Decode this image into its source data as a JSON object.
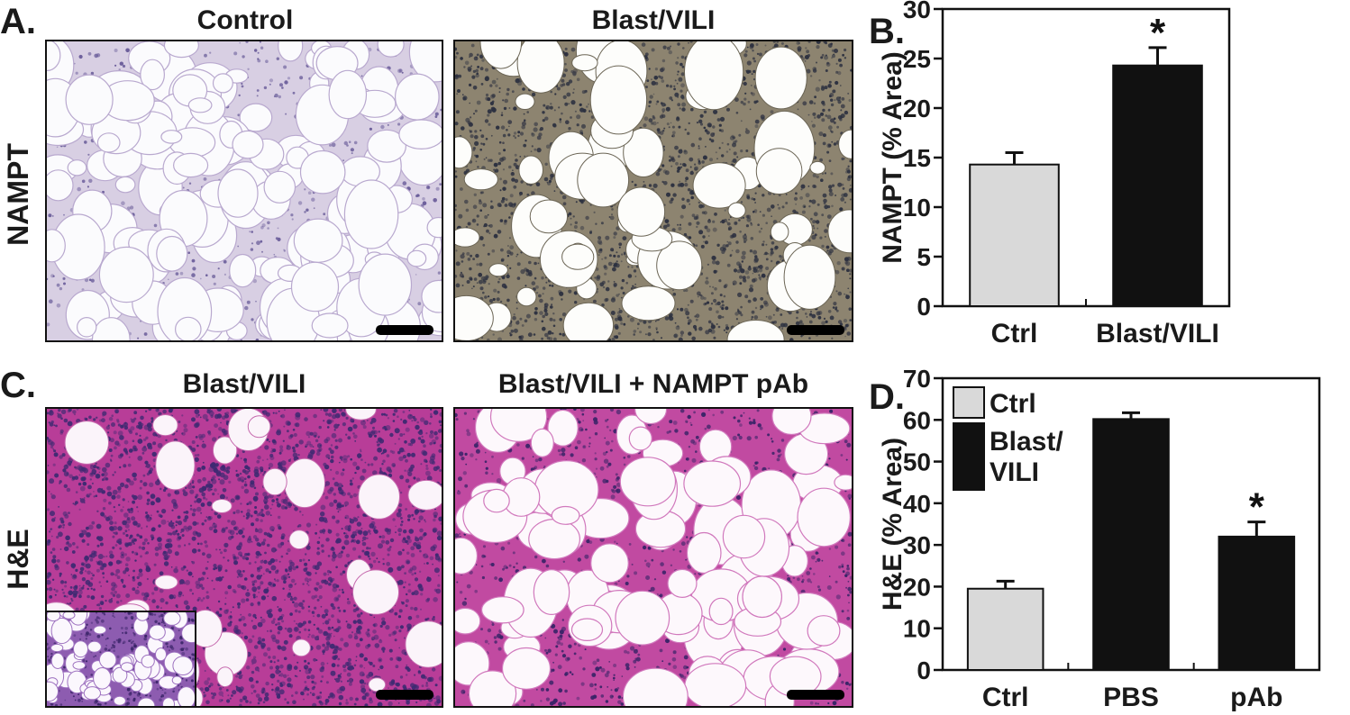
{
  "figure": {
    "panel_A": {
      "letter": "A.",
      "row_label": "NAMPT",
      "images": [
        {
          "title": "Control",
          "stain": "NAMPT immunohistochemistry"
        },
        {
          "title": "Blast/VILI",
          "stain": "NAMPT immunohistochemistry"
        }
      ]
    },
    "panel_C": {
      "letter": "C.",
      "row_label": "H&E",
      "images": [
        {
          "title": "Blast/VILI",
          "stain": "H&E"
        },
        {
          "title": "Blast/VILI + NAMPT pAb",
          "stain": "H&E"
        }
      ]
    },
    "colors": {
      "ctrl_bar": "#d9d9d9",
      "treated_bar": "#111111",
      "nampt_bg_control": "#f4f3f7",
      "nampt_bg_blast": "#948a74",
      "he_bg": "#c54da3"
    }
  },
  "chart_data": [
    {
      "panel": "B.",
      "type": "bar",
      "categories": [
        "Ctrl",
        "Blast/VILI"
      ],
      "values": [
        14.3,
        24.3
      ],
      "errors": [
        1.2,
        1.8
      ],
      "bar_colors": [
        "#d9d9d9",
        "#111111"
      ],
      "significance": [
        "",
        "*"
      ],
      "ylabel": "NAMPT (% Area)",
      "ylim": [
        0,
        30
      ],
      "yticks": [
        0,
        5,
        10,
        15,
        20,
        25,
        30
      ],
      "grid": false,
      "legend": null
    },
    {
      "panel": "D.",
      "type": "bar",
      "categories": [
        "Ctrl",
        "PBS",
        "pAb"
      ],
      "values": [
        19.5,
        60.2,
        32.0
      ],
      "errors": [
        1.8,
        1.5,
        3.5
      ],
      "bar_colors": [
        "#d9d9d9",
        "#111111",
        "#111111"
      ],
      "significance": [
        "",
        "",
        "*"
      ],
      "ylabel": "H&E (% Area)",
      "ylim": [
        0,
        70
      ],
      "yticks": [
        0,
        10,
        20,
        30,
        40,
        50,
        60,
        70
      ],
      "grid": false,
      "legend": {
        "placement": "top-left",
        "entries": [
          {
            "label": "Ctrl",
            "color": "#d9d9d9"
          },
          {
            "label": "Blast/VILI",
            "color": "#111111"
          }
        ]
      }
    }
  ]
}
